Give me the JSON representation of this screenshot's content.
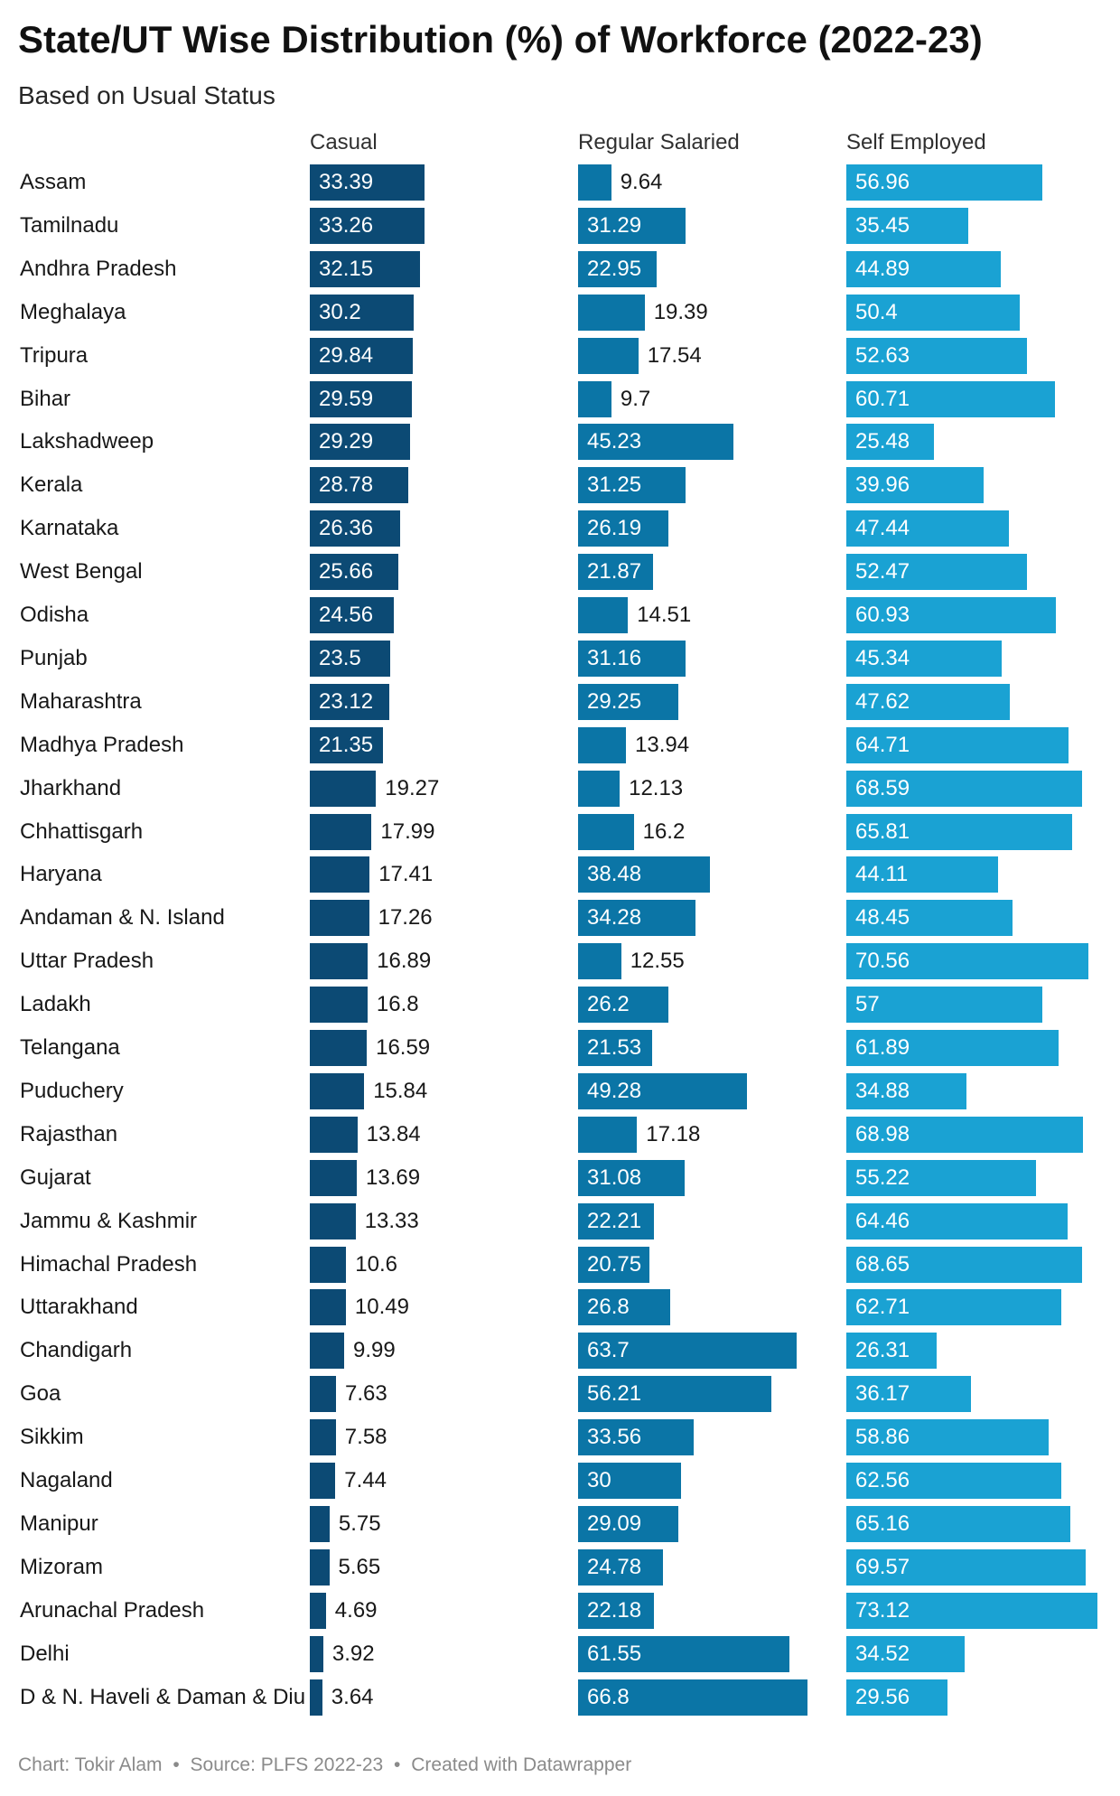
{
  "title": "State/UT Wise Distribution (%) of Workforce (2022-23)",
  "subtitle": "Based on Usual Status",
  "footer": {
    "chart_by": "Chart: Tokir Alam",
    "separator": "•",
    "source": "Source: PLFS 2022-23",
    "created_with": "Created with Datawrapper"
  },
  "colors": {
    "casual": "#0c4a74",
    "regular_salaried": "#0b75a6",
    "self_employed": "#1aa2d3"
  },
  "chart_data": {
    "type": "bar",
    "orientation": "horizontal",
    "layout": "small-multiples",
    "xlim": [
      0,
      80
    ],
    "categories": [
      "Assam",
      "Tamilnadu",
      "Andhra Pradesh",
      "Meghalaya",
      "Tripura",
      "Bihar",
      "Lakshadweep",
      "Kerala",
      "Karnataka",
      "West Bengal",
      "Odisha",
      "Punjab",
      "Maharashtra",
      "Madhya Pradesh",
      "Jharkhand",
      "Chhattisgarh",
      "Haryana",
      "Andaman & N. Island",
      "Uttar Pradesh",
      "Ladakh",
      "Telangana",
      "Puducher y",
      "Rajasthan",
      "Gujarat",
      "Jammu & Kashmir",
      "Himachal Pradesh",
      "Uttarakhand",
      "Chandigarh",
      "Goa",
      "Sikkim",
      "Nagaland",
      "Manipur",
      "Mizoram",
      "Arunachal Pradesh",
      "Delhi",
      "D & N. Haveli & Daman & Diu"
    ],
    "series": [
      {
        "name": "Casual",
        "color": "#0c4a74",
        "values": [
          33.39,
          33.26,
          32.15,
          30.2,
          29.84,
          29.59,
          29.29,
          28.78,
          26.36,
          25.66,
          24.56,
          23.5,
          23.12,
          21.35,
          19.27,
          17.99,
          17.41,
          17.26,
          16.89,
          16.8,
          16.59,
          15.84,
          13.84,
          13.69,
          13.33,
          10.6,
          10.49,
          9.99,
          7.63,
          7.58,
          7.44,
          5.75,
          5.65,
          4.69,
          3.92,
          3.64
        ]
      },
      {
        "name": "Regular Salaried",
        "color": "#0b75a6",
        "values": [
          9.64,
          31.29,
          22.95,
          19.39,
          17.54,
          9.7,
          45.23,
          31.25,
          26.19,
          21.87,
          14.51,
          31.16,
          29.25,
          13.94,
          12.13,
          16.2,
          38.48,
          34.28,
          12.55,
          26.2,
          21.53,
          49.28,
          17.18,
          31.08,
          22.21,
          20.75,
          26.8,
          63.7,
          56.21,
          33.56,
          30,
          29.09,
          24.78,
          22.18,
          61.55,
          66.8
        ]
      },
      {
        "name": "Self Employed",
        "color": "#1aa2d3",
        "values": [
          56.96,
          35.45,
          44.89,
          50.4,
          52.63,
          60.71,
          25.48,
          39.96,
          47.44,
          52.47,
          60.93,
          45.34,
          47.62,
          64.71,
          68.59,
          65.81,
          44.11,
          48.45,
          70.56,
          57,
          61.89,
          34.88,
          68.98,
          55.22,
          64.46,
          68.65,
          62.71,
          26.31,
          36.17,
          58.86,
          62.56,
          65.16,
          69.57,
          73.12,
          34.52,
          29.56
        ]
      }
    ]
  }
}
